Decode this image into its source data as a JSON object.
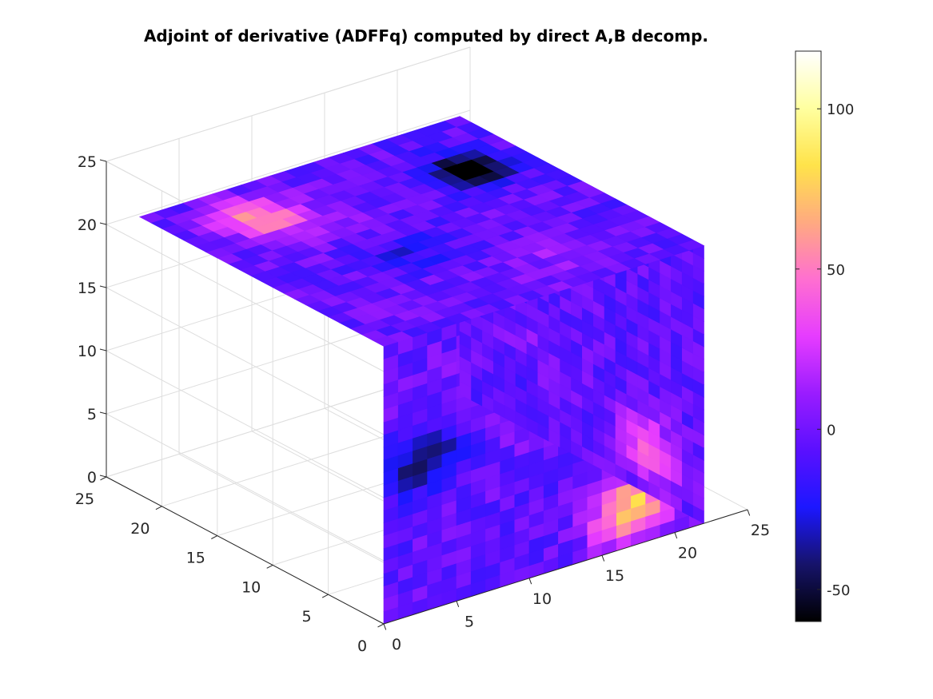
{
  "chart_data": {
    "type": "heatmap",
    "subtype": "3d-volume-slice",
    "title": "Adjoint of derivative (ADFFq) computed by direct A,B decomp.",
    "xlabel": "",
    "ylabel": "",
    "zlabel": "",
    "x_axis": {
      "range": [
        0,
        25
      ],
      "ticks": [
        "0",
        "5",
        "10",
        "15",
        "20",
        "25"
      ]
    },
    "y_axis": {
      "range": [
        0,
        25
      ],
      "ticks": [
        "0",
        "5",
        "10",
        "15",
        "20",
        "25"
      ]
    },
    "z_axis": {
      "range": [
        0,
        25
      ],
      "ticks": [
        "0",
        "5",
        "10",
        "15",
        "20",
        "25"
      ]
    },
    "grid": true,
    "colormap": "black-blue-magenta-pink-yellow-white",
    "colorbar": {
      "range": [
        -60,
        118
      ],
      "ticks": [
        "-50",
        "0",
        "50",
        "100"
      ],
      "colors": [
        "#000000",
        "#16136a",
        "#1c17ff",
        "#5a10ff",
        "#9a1cff",
        "#e63cff",
        "#ff6fd0",
        "#ffaa80",
        "#ffe34a",
        "#ffffa0",
        "#ffffff"
      ]
    },
    "volume_grid_size": [
      22,
      22,
      22
    ],
    "faces": [
      "front (y=0)",
      "right (x=22)",
      "top (z=22)"
    ],
    "value_range_observed": [
      -55,
      90
    ]
  }
}
